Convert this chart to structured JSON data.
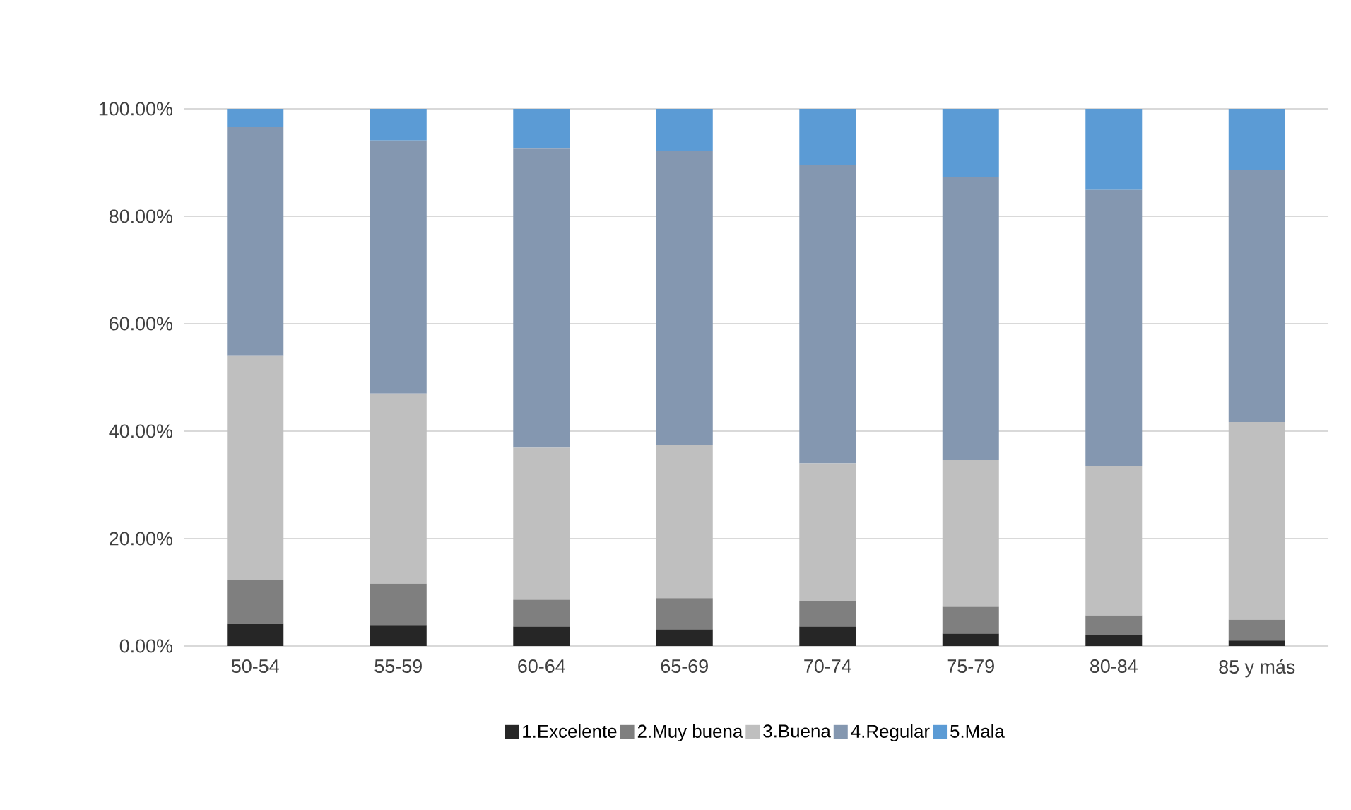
{
  "chart_data": {
    "type": "bar",
    "stacked": true,
    "categories": [
      "50-54",
      "55-59",
      "60-64",
      "65-69",
      "70-74",
      "75-79",
      "80-84",
      "85 y más"
    ],
    "series": [
      {
        "name": "1.Excelente",
        "color": "#262626",
        "values": [
          4.1,
          3.9,
          3.6,
          3.1,
          3.6,
          2.3,
          2.0,
          1.0
        ]
      },
      {
        "name": "2.Muy buena",
        "color": "#7f7f7f",
        "values": [
          8.2,
          7.7,
          5.0,
          5.8,
          4.8,
          5.0,
          3.7,
          3.9
        ]
      },
      {
        "name": "3.Buena",
        "color": "#bfbfbf",
        "values": [
          41.8,
          35.4,
          28.3,
          28.6,
          25.6,
          27.3,
          27.8,
          36.8
        ]
      },
      {
        "name": "4.Regular",
        "color": "#8497b0",
        "values": [
          42.6,
          47.1,
          55.7,
          54.7,
          55.5,
          52.7,
          51.4,
          46.9
        ]
      },
      {
        "name": "5.Mala",
        "color": "#5b9bd5",
        "values": [
          3.3,
          5.9,
          7.4,
          7.8,
          10.5,
          12.7,
          15.1,
          11.4
        ]
      }
    ],
    "ylim": [
      0,
      100
    ],
    "yticks": [
      {
        "value": 0,
        "label": "0.00%"
      },
      {
        "value": 20,
        "label": "20.00%"
      },
      {
        "value": 40,
        "label": "40.00%"
      },
      {
        "value": 60,
        "label": "60.00%"
      },
      {
        "value": 80,
        "label": "80.00%"
      },
      {
        "value": 100,
        "label": "100.00%"
      }
    ],
    "grid": "y",
    "legend": "bottom"
  }
}
